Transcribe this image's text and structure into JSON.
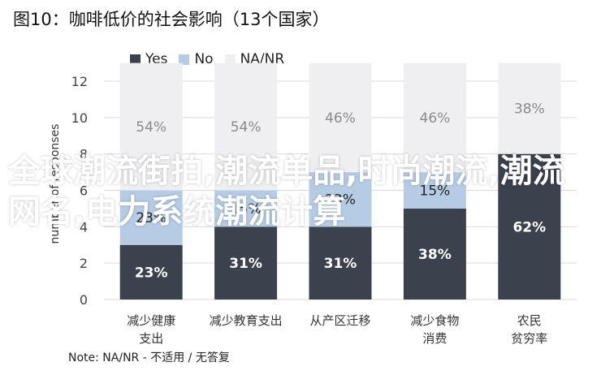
{
  "chart_data": {
    "type": "bar",
    "title": "图10：咖啡低价的社会影响（13个国家）",
    "ylabel": "number of responses",
    "xlabel": "",
    "ylim": [
      0,
      12
    ],
    "yticks": [
      0,
      2,
      4,
      6,
      8,
      10,
      12
    ],
    "grid": true,
    "legend_position": "top",
    "stacked": true,
    "categories": [
      [
        "减少健康",
        "支出"
      ],
      [
        "减少教育支出"
      ],
      [
        "从产区迁移"
      ],
      [
        "减少食物",
        "消费"
      ],
      [
        "农民",
        "贫穷率"
      ]
    ],
    "series": [
      {
        "name": "Yes",
        "color": "#3b414d",
        "values": [
          3,
          4,
          4,
          5,
          8
        ],
        "labels": [
          "23%",
          "31%",
          "31%",
          "38%",
          "62%"
        ],
        "label_color": "#ffffff"
      },
      {
        "name": "No",
        "color": "#b6cce4",
        "values": [
          3,
          2,
          3,
          2,
          0
        ],
        "labels": [
          "23%",
          "15%",
          "23%",
          "15%",
          ""
        ],
        "label_color": "#222222"
      },
      {
        "name": "NA/NR",
        "color": "#efeff1",
        "values": [
          7,
          7,
          6,
          6,
          5
        ],
        "labels": [
          "54%",
          "54%",
          "46%",
          "46%",
          "38%"
        ],
        "label_color": "#8a8a8a"
      }
    ]
  },
  "note": "Note: NA/NR - 不适用 / 无答复",
  "watermark": "全球潮流街拍,潮流单品,时尚潮流,潮流网名,电力系统潮流计算"
}
